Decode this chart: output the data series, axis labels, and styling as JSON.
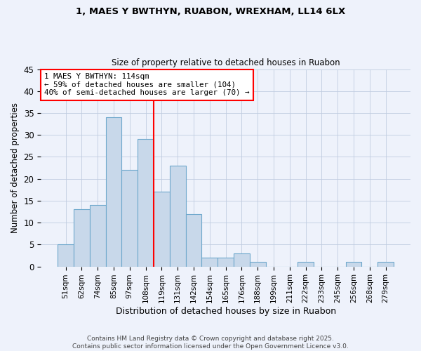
{
  "title_line1": "1, MAES Y BWTHYN, RUABON, WREXHAM, LL14 6LX",
  "title_line2": "Size of property relative to detached houses in Ruabon",
  "xlabel": "Distribution of detached houses by size in Ruabon",
  "ylabel": "Number of detached properties",
  "footer": "Contains HM Land Registry data © Crown copyright and database right 2025.\nContains public sector information licensed under the Open Government Licence v3.0.",
  "bin_labels": [
    "51sqm",
    "62sqm",
    "74sqm",
    "85sqm",
    "97sqm",
    "108sqm",
    "119sqm",
    "131sqm",
    "142sqm",
    "154sqm",
    "165sqm",
    "176sqm",
    "188sqm",
    "199sqm",
    "211sqm",
    "222sqm",
    "233sqm",
    "245sqm",
    "256sqm",
    "268sqm",
    "279sqm"
  ],
  "bar_heights": [
    5,
    13,
    14,
    34,
    22,
    29,
    17,
    23,
    12,
    2,
    2,
    3,
    1,
    0,
    0,
    1,
    0,
    0,
    1,
    0,
    1
  ],
  "bar_color": "#c8d8ea",
  "bar_edge_color": "#6ea8cc",
  "vline_color": "red",
  "vline_pos": 5.5,
  "annotation_text": "1 MAES Y BWTHYN: 114sqm\n← 59% of detached houses are smaller (104)\n40% of semi-detached houses are larger (70) →",
  "annotation_box_color": "white",
  "annotation_box_edge": "red",
  "ylim": [
    0,
    45
  ],
  "yticks": [
    0,
    5,
    10,
    15,
    20,
    25,
    30,
    35,
    40,
    45
  ],
  "background_color": "#eef2fb",
  "plot_background": "#eef2fb",
  "grid_color": "#c0cce0"
}
